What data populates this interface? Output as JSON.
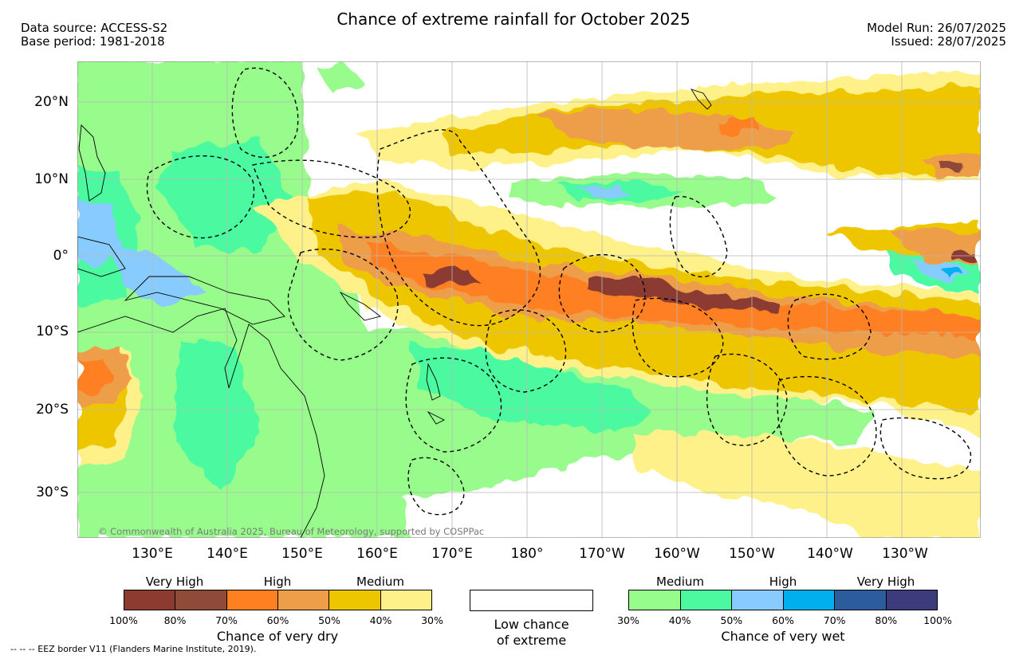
{
  "header": {
    "title": "Chance of extreme rainfall for October 2025",
    "data_source": "Data source: ACCESS-S2",
    "base_period": "Base period: 1981-2018",
    "model_run": "Model Run: 26/07/2025",
    "issued": "Issued: 28/07/2025"
  },
  "map": {
    "lon_labels": [
      "130°E",
      "140°E",
      "150°E",
      "160°E",
      "170°E",
      "180°",
      "170°W",
      "160°W",
      "150°W",
      "140°W",
      "130°W"
    ],
    "lat_labels": [
      "20°N",
      "10°N",
      "0°",
      "10°S",
      "20°S",
      "30°S"
    ],
    "copyright": "© Commonwealth of Australia 2025, Bureau of Meteorology, supported by COSPPac"
  },
  "legend": {
    "dry": {
      "categories": [
        "Very High",
        "High",
        "Medium"
      ],
      "ticks": [
        "100%",
        "80%",
        "70%",
        "60%",
        "50%",
        "40%",
        "30%"
      ],
      "colors": [
        "#8b3b30",
        "#8f4a38",
        "#ff8020",
        "#ee9d48",
        "#eec600",
        "#fff18a"
      ],
      "title": "Chance of very dry"
    },
    "low": {
      "line1": "Low chance",
      "line2": "of extreme"
    },
    "wet": {
      "categories": [
        "Medium",
        "High",
        "Very High"
      ],
      "ticks": [
        "30%",
        "40%",
        "50%",
        "60%",
        "70%",
        "80%",
        "100%"
      ],
      "colors": [
        "#98fc8c",
        "#4cf9a0",
        "#88ccff",
        "#00b0ee",
        "#2c5c9c",
        "#3c3c7c"
      ],
      "title": "Chance of very wet"
    }
  },
  "footer": {
    "eez_note": "--  --  -- EEZ border V11 (Flanders Marine Institute, 2019)."
  }
}
